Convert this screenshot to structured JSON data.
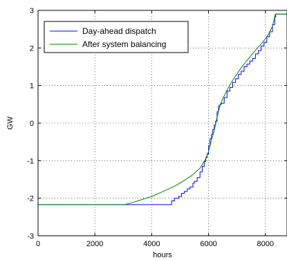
{
  "chart_data": {
    "type": "line",
    "xlabel": "hours",
    "ylabel": "GW",
    "xlim": [
      0,
      8760
    ],
    "ylim": [
      -3,
      3
    ],
    "x_ticks": [
      0,
      2000,
      4000,
      6000,
      8000
    ],
    "y_ticks": [
      -3,
      -2,
      -1,
      0,
      1,
      2,
      3
    ],
    "x_tick_labels": [
      "0",
      "2000",
      "4000",
      "6000",
      "8000"
    ],
    "y_tick_labels": [
      "-3",
      "-2",
      "-1",
      "0",
      "1",
      "2",
      "3"
    ],
    "grid": "dotted",
    "legend_position": "top-left",
    "series": [
      {
        "name": "Day-ahead dispatch",
        "color": "#0000ff",
        "style": "step",
        "points": [
          [
            0,
            -2.17
          ],
          [
            4680,
            -2.17
          ],
          [
            4700,
            -2.07
          ],
          [
            4800,
            -2.0
          ],
          [
            4950,
            -1.95
          ],
          [
            5050,
            -1.87
          ],
          [
            5150,
            -1.82
          ],
          [
            5250,
            -1.75
          ],
          [
            5350,
            -1.7
          ],
          [
            5450,
            -1.6
          ],
          [
            5500,
            -1.55
          ],
          [
            5600,
            -1.45
          ],
          [
            5700,
            -1.3
          ],
          [
            5780,
            -1.15
          ],
          [
            5850,
            -1.02
          ],
          [
            5900,
            -0.92
          ],
          [
            5950,
            -0.82
          ],
          [
            6000,
            -0.6
          ],
          [
            6050,
            -0.42
          ],
          [
            6100,
            -0.3
          ],
          [
            6150,
            -0.17
          ],
          [
            6200,
            -0.05
          ],
          [
            6250,
            0.05
          ],
          [
            6300,
            0.3
          ],
          [
            6350,
            0.45
          ],
          [
            6400,
            0.5
          ],
          [
            6450,
            0.53
          ],
          [
            6550,
            0.68
          ],
          [
            6650,
            0.85
          ],
          [
            6750,
            0.95
          ],
          [
            6850,
            1.08
          ],
          [
            6950,
            1.18
          ],
          [
            7050,
            1.3
          ],
          [
            7150,
            1.38
          ],
          [
            7250,
            1.5
          ],
          [
            7350,
            1.57
          ],
          [
            7450,
            1.65
          ],
          [
            7550,
            1.72
          ],
          [
            7650,
            1.84
          ],
          [
            7750,
            1.93
          ],
          [
            7850,
            2.05
          ],
          [
            7950,
            2.15
          ],
          [
            8050,
            2.3
          ],
          [
            8150,
            2.43
          ],
          [
            8250,
            2.62
          ],
          [
            8330,
            2.82
          ],
          [
            8360,
            2.9
          ],
          [
            8760,
            2.9
          ]
        ]
      },
      {
        "name": "After system balancing",
        "color": "#008000",
        "style": "line",
        "points": [
          [
            0,
            -2.17
          ],
          [
            3050,
            -2.17
          ],
          [
            3300,
            -2.12
          ],
          [
            3600,
            -2.05
          ],
          [
            4000,
            -1.95
          ],
          [
            4400,
            -1.82
          ],
          [
            4800,
            -1.68
          ],
          [
            5100,
            -1.55
          ],
          [
            5400,
            -1.4
          ],
          [
            5700,
            -1.2
          ],
          [
            5900,
            -0.95
          ],
          [
            6000,
            -0.75
          ],
          [
            6100,
            -0.45
          ],
          [
            6200,
            -0.2
          ],
          [
            6300,
            0.15
          ],
          [
            6400,
            0.45
          ],
          [
            6500,
            0.65
          ],
          [
            6700,
            0.95
          ],
          [
            6900,
            1.2
          ],
          [
            7100,
            1.42
          ],
          [
            7300,
            1.62
          ],
          [
            7500,
            1.8
          ],
          [
            7700,
            1.98
          ],
          [
            7900,
            2.15
          ],
          [
            8100,
            2.35
          ],
          [
            8250,
            2.58
          ],
          [
            8350,
            2.9
          ],
          [
            8760,
            2.9
          ]
        ]
      }
    ]
  }
}
